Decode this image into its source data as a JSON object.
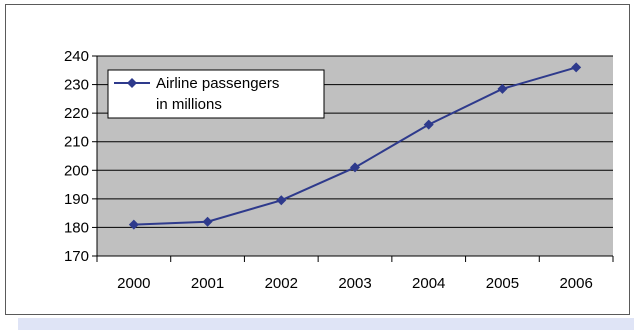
{
  "chart_data": {
    "type": "line",
    "categories": [
      "2000",
      "2001",
      "2002",
      "2003",
      "2004",
      "2005",
      "2006"
    ],
    "series": [
      {
        "name": "Airline passengers in millions",
        "name_lines": [
          "Airline passengers",
          "in millions"
        ],
        "values": [
          181,
          182,
          189.5,
          201,
          216,
          228.5,
          236
        ]
      }
    ],
    "ylim": [
      170,
      240
    ],
    "yticks": [
      170,
      180,
      190,
      200,
      210,
      220,
      230,
      240
    ],
    "grid": true,
    "legend_position": "top-left",
    "colors": {
      "line": "#2e3a8c",
      "marker": "#2e3a8c",
      "plot_background": "#c0c0c0",
      "grid": "#000000"
    }
  }
}
